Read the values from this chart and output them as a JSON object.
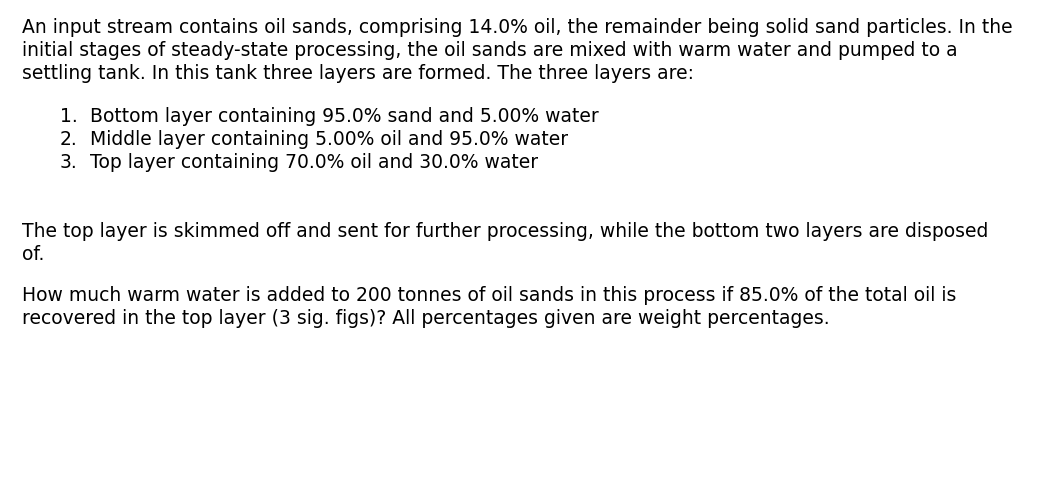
{
  "background_color": "#ffffff",
  "text_color": "#000000",
  "font_size": 13.5,
  "font_family": "DejaVu Sans",
  "paragraph1": "An input stream contains oil sands, comprising 14.0% oil, the remainder being solid sand particles. In the\ninitial stages of steady-state processing, the oil sands are mixed with warm water and pumped to a\nsettling tank. In this tank three layers are formed. The three layers are:",
  "list_items": [
    "Bottom layer containing 95.0% sand and 5.00% water",
    "Middle layer containing 5.00% oil and 95.0% water",
    "Top layer containing 70.0% oil and 30.0% water"
  ],
  "paragraph2": "The top layer is skimmed off and sent for further processing, while the bottom two layers are disposed\nof.",
  "paragraph3": "How much warm water is added to 200 tonnes of oil sands in this process if 85.0% of the total oil is\nrecovered in the top layer (3 sig. figs)? All percentages given are weight percentages."
}
